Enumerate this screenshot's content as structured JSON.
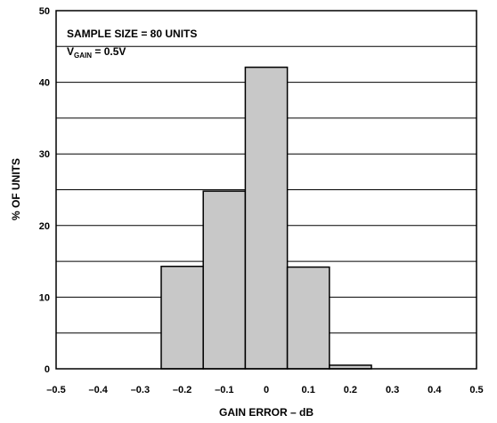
{
  "chart_data": {
    "type": "bar",
    "xlabel": "GAIN ERROR – dB",
    "ylabel": "% OF UNITS",
    "xlim": [
      -0.5,
      0.5
    ],
    "ylim": [
      0,
      50
    ],
    "x_ticks": [
      "–0.5",
      "–0.4",
      "–0.3",
      "–0.2",
      "–0.1",
      "0",
      "0.1",
      "0.2",
      "0.3",
      "0.4",
      "0.5"
    ],
    "y_ticks": [
      "0",
      "10",
      "20",
      "30",
      "40",
      "50"
    ],
    "grid": true,
    "bins": [
      {
        "from": -0.25,
        "to": -0.15,
        "value": 14.3
      },
      {
        "from": -0.15,
        "to": -0.05,
        "value": 24.8
      },
      {
        "from": -0.05,
        "to": 0.05,
        "value": 42.1
      },
      {
        "from": 0.05,
        "to": 0.15,
        "value": 14.2
      },
      {
        "from": 0.15,
        "to": 0.25,
        "value": 0.5
      }
    ],
    "annotations": {
      "sample_size": "SAMPLE SIZE = 80 UNITS",
      "vgain_prefix": "V",
      "vgain_sub": "GAIN",
      "vgain_suffix": " = 0.5V"
    }
  }
}
